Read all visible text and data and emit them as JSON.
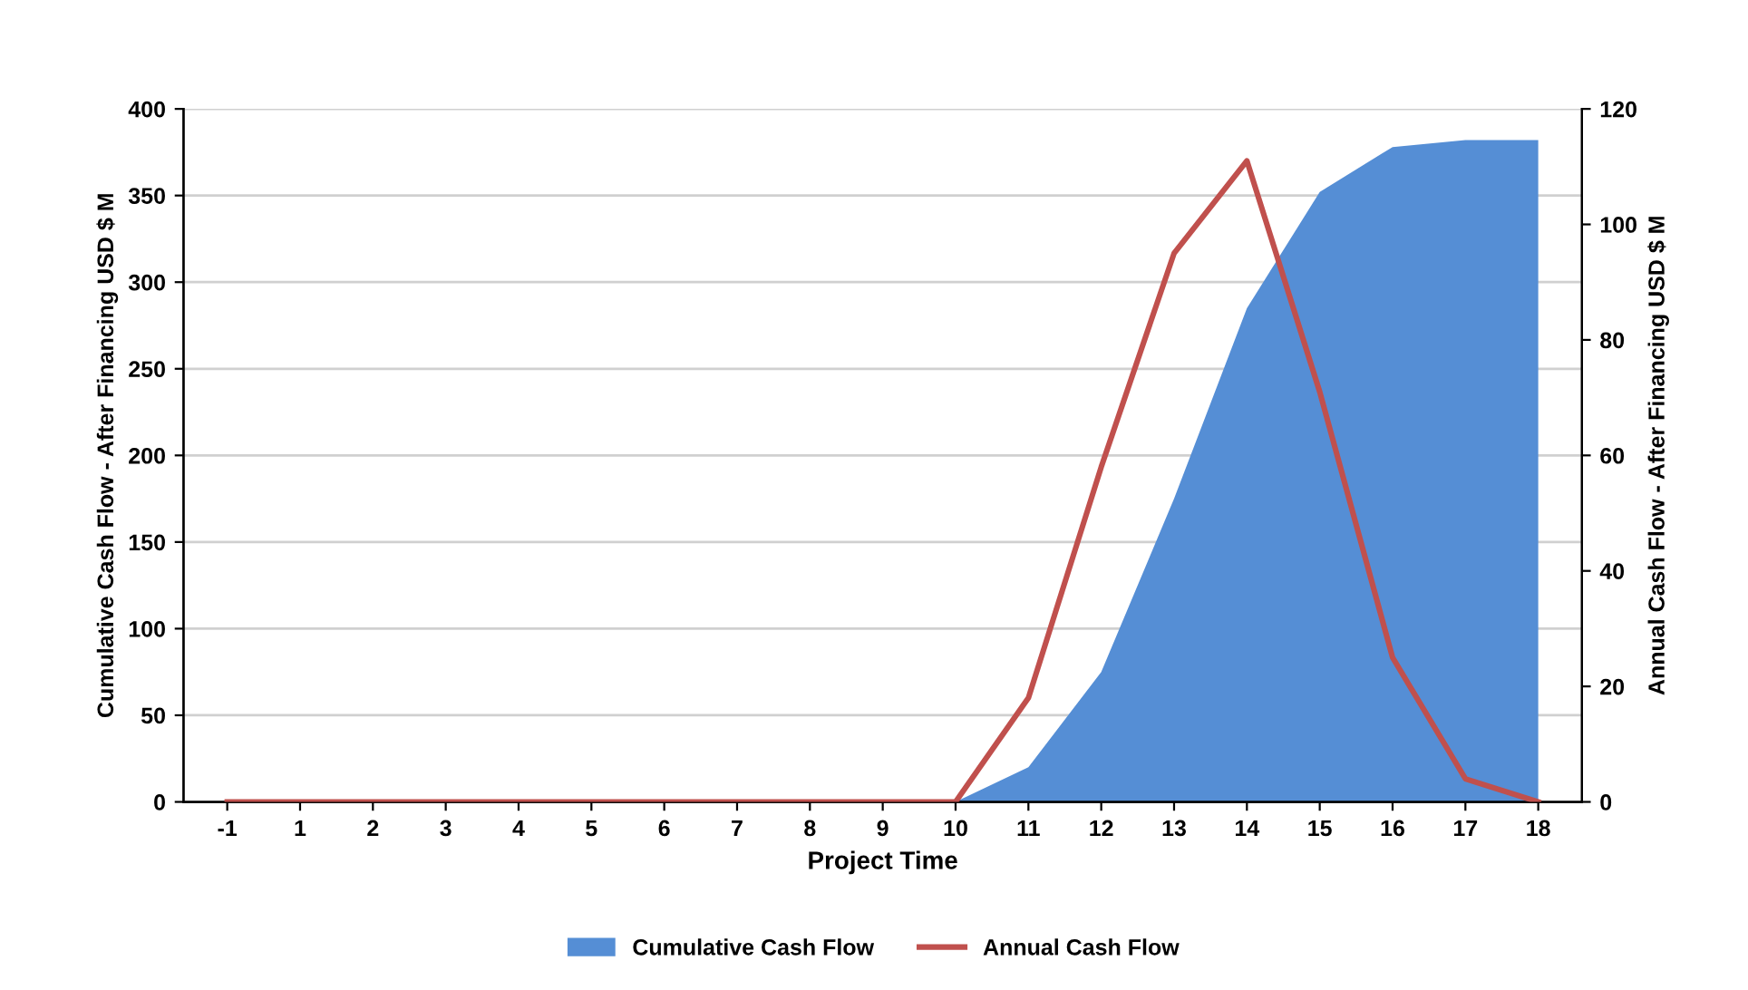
{
  "chart_data": {
    "type": "area",
    "xlabel": "Project Time",
    "ylabel": "Cumulative Cash Flow - After Financing USD $ M",
    "y2label": "Annual Cash Flow - After Financing USD $ M",
    "categories": [
      "-1",
      "1",
      "2",
      "3",
      "4",
      "5",
      "6",
      "7",
      "8",
      "9",
      "10",
      "11",
      "12",
      "13",
      "14",
      "15",
      "16",
      "17",
      "18"
    ],
    "series": [
      {
        "name": "Cumulative Cash Flow",
        "color": "#558ed5",
        "values": [
          0,
          0,
          0,
          0,
          0,
          0,
          0,
          0,
          0,
          0,
          0,
          20,
          75,
          175,
          285,
          352,
          378,
          382,
          382
        ]
      },
      {
        "name": "Annual Cash Flow",
        "type": "line",
        "axis": "y2",
        "color": "#c0504d",
        "values": [
          0,
          0,
          0,
          0,
          0,
          0,
          0,
          0,
          0,
          0,
          0,
          18,
          58,
          95,
          111,
          71,
          25,
          4,
          0
        ]
      }
    ],
    "ylim": [
      0,
      400
    ],
    "yticks": [
      0,
      50,
      100,
      150,
      200,
      250,
      300,
      350,
      400
    ],
    "y2lim": [
      0,
      120
    ],
    "y2ticks": [
      0,
      20,
      40,
      60,
      80,
      100,
      120
    ],
    "grid": "y",
    "legend": "bottom"
  }
}
